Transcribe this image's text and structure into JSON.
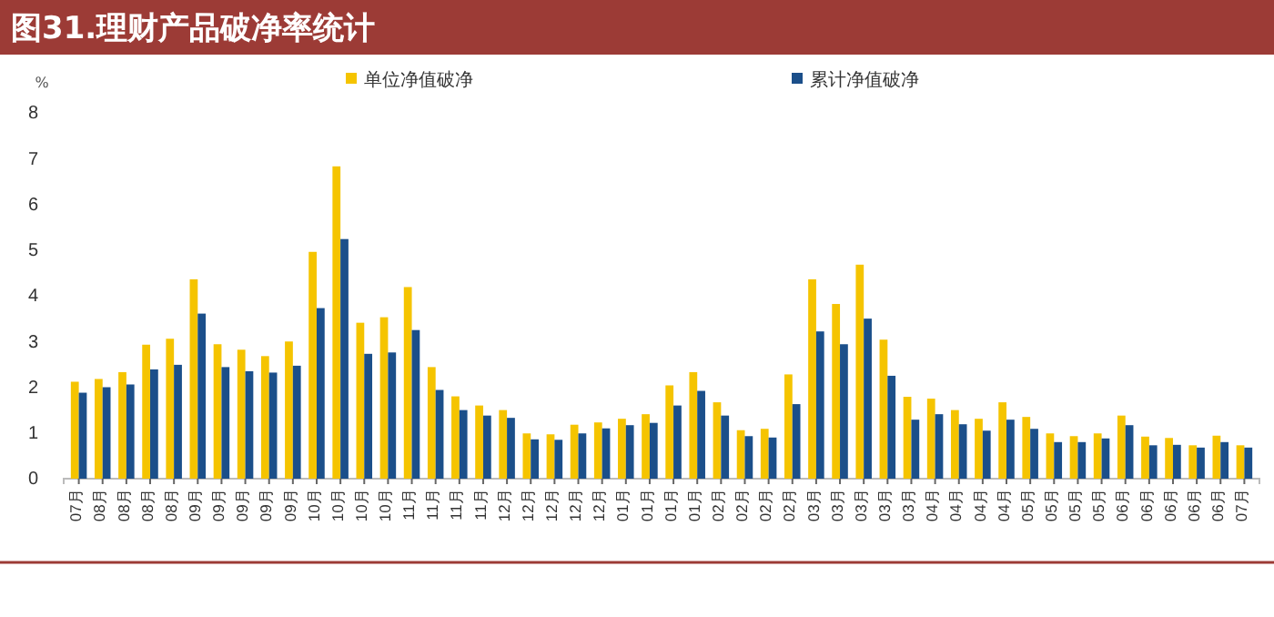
{
  "chart_data": {
    "type": "bar",
    "title": "图31.理财产品破净率统计",
    "ylabel": "%",
    "categories": [
      "07月",
      "08月",
      "08月",
      "08月",
      "08月",
      "09月",
      "09月",
      "09月",
      "09月",
      "09月",
      "10月",
      "10月",
      "10月",
      "10月",
      "11月",
      "11月",
      "11月",
      "11月",
      "12月",
      "12月",
      "12月",
      "12月",
      "12月",
      "01月",
      "01月",
      "01月",
      "01月",
      "02月",
      "02月",
      "02月",
      "02月",
      "03月",
      "03月",
      "03月",
      "03月",
      "03月",
      "04月",
      "04月",
      "04月",
      "04月",
      "05月",
      "05月",
      "05月",
      "05月",
      "06月",
      "06月",
      "06月",
      "06月",
      "06月",
      "07月"
    ],
    "series": [
      {
        "name": "单位净值破净",
        "color": "#f5c400",
        "values": [
          2.12,
          2.18,
          2.33,
          2.93,
          3.06,
          4.36,
          2.94,
          2.82,
          2.68,
          3.0,
          4.96,
          6.83,
          3.41,
          3.53,
          4.19,
          2.44,
          1.8,
          1.6,
          1.5,
          0.99,
          0.97,
          1.18,
          1.23,
          1.31,
          1.41,
          2.04,
          2.33,
          1.67,
          1.06,
          1.09,
          2.28,
          4.36,
          3.82,
          4.68,
          3.04,
          1.79,
          1.75,
          1.5,
          1.31,
          1.67,
          1.35,
          0.99,
          0.93,
          0.99,
          1.38,
          0.92,
          0.89,
          0.73,
          0.94,
          0.73
        ]
      },
      {
        "name": "累计净值破净",
        "color": "#1b4f8a",
        "values": [
          1.88,
          2.0,
          2.06,
          2.39,
          2.49,
          3.61,
          2.44,
          2.35,
          2.32,
          2.47,
          3.73,
          5.24,
          2.73,
          2.76,
          3.25,
          1.94,
          1.5,
          1.38,
          1.33,
          0.86,
          0.85,
          0.99,
          1.1,
          1.17,
          1.22,
          1.6,
          1.92,
          1.38,
          0.93,
          0.9,
          1.63,
          3.22,
          2.94,
          3.5,
          2.25,
          1.29,
          1.41,
          1.19,
          1.05,
          1.29,
          1.09,
          0.8,
          0.8,
          0.88,
          1.17,
          0.73,
          0.74,
          0.68,
          0.8,
          0.68
        ]
      }
    ],
    "ylim": [
      0,
      8
    ],
    "yticks": [
      0,
      1,
      2,
      3,
      4,
      5,
      6,
      7,
      8
    ],
    "grid": false,
    "legend": "top"
  }
}
